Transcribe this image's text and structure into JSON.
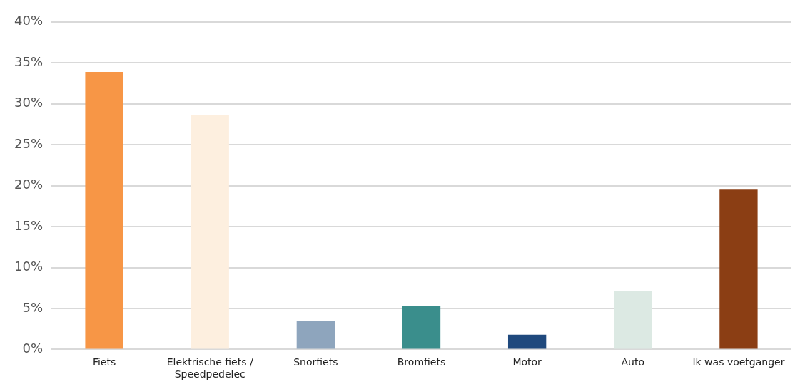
{
  "chart_data": {
    "type": "bar",
    "categories": [
      "Fiets",
      "Elektrische fiets / Speedpedelec",
      "Snorfiets",
      "Bromfiets",
      "Motor",
      "Auto",
      "Ik was voetganger"
    ],
    "values": [
      33.9,
      28.6,
      3.5,
      5.3,
      1.8,
      7.1,
      19.6
    ],
    "colors": [
      "#f79646",
      "#fdefdf",
      "#8ea5bd",
      "#3a8e8c",
      "#1f497d",
      "#dce9e3",
      "#8b3e14"
    ],
    "ylim": [
      0,
      40
    ],
    "yticks": [
      {
        "value": 0,
        "label": "0%"
      },
      {
        "value": 5,
        "label": "5%"
      },
      {
        "value": 10,
        "label": "10%"
      },
      {
        "value": 15,
        "label": "15%"
      },
      {
        "value": 20,
        "label": "20%"
      },
      {
        "value": 25,
        "label": "25%"
      },
      {
        "value": 30,
        "label": "30%"
      },
      {
        "value": 35,
        "label": "35%"
      },
      {
        "value": 40,
        "label": "40%"
      }
    ],
    "grid": "y",
    "legend": false
  }
}
